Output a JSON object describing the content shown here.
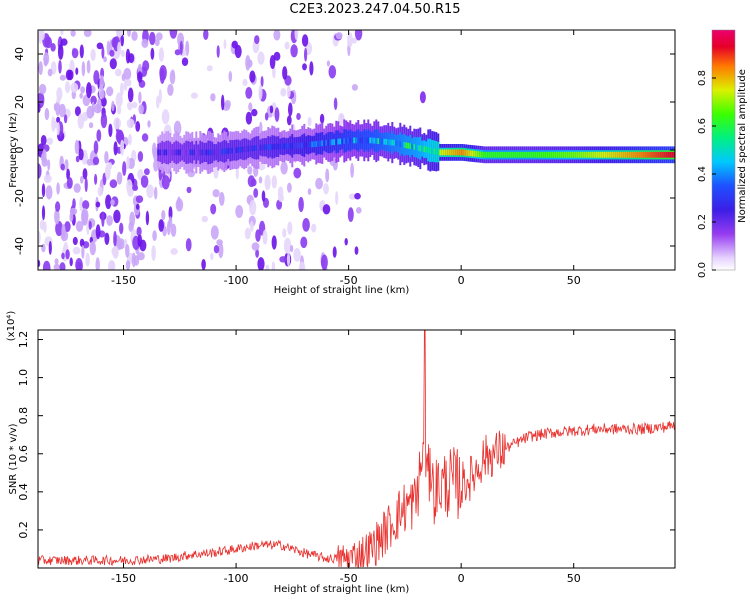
{
  "page": {
    "title": "C2E3.2023.247.04.50.R15"
  },
  "chart_data": [
    {
      "type": "heatmap",
      "title": "C2E3.2023.247.04.50.R15",
      "xlabel": "Height of straight line (km)",
      "ylabel": "Frequency (Hz)",
      "xlim": [
        -188,
        95
      ],
      "ylim": [
        -50,
        50
      ],
      "x_ticks": [
        -150,
        -100,
        -50,
        0,
        50
      ],
      "y_ticks": [
        -40,
        -20,
        0,
        20,
        40
      ],
      "colorbar": {
        "label": "Normalized spectral amplitude",
        "ticks": [
          0.0,
          0.2,
          0.4,
          0.6,
          0.8
        ],
        "range": [
          0,
          1
        ]
      },
      "signal_band": {
        "description_points_x": [
          -130,
          -110,
          -90,
          -70,
          -50,
          -40,
          -30,
          -20,
          -10,
          0,
          10,
          30,
          50,
          70,
          95
        ],
        "center_frequency": [
          -1,
          -1,
          1,
          2,
          4,
          4,
          3,
          1,
          -1,
          -1,
          -2,
          -2,
          -2,
          -2,
          -2
        ],
        "amplitude": [
          0.25,
          0.3,
          0.3,
          0.35,
          0.45,
          0.5,
          0.55,
          0.6,
          0.7,
          0.8,
          0.6,
          0.6,
          0.65,
          0.75,
          0.9
        ]
      },
      "noise_region_x": [
        -188,
        -45
      ]
    },
    {
      "type": "line",
      "xlabel": "Height of straight line (km)",
      "ylabel": "SNR (10 * v/v)",
      "y_scale_label": "(x10⁴)",
      "xlim": [
        -188,
        95
      ],
      "ylim": [
        0,
        1.25
      ],
      "x_ticks": [
        -150,
        -100,
        -50,
        0,
        50
      ],
      "y_ticks": [
        0.2,
        0.4,
        0.6,
        0.8,
        1.0,
        1.2
      ],
      "color": "#e8302d",
      "series": [
        {
          "x": [
            -188,
            -170,
            -150,
            -130,
            -120,
            -110,
            -100,
            -90,
            -80,
            -70,
            -60,
            -50,
            -45,
            -40,
            -35,
            -30,
            -25,
            -20,
            -17,
            -15,
            -12,
            -10,
            -5,
            0,
            5,
            10,
            15,
            20,
            25,
            30,
            40,
            50,
            60,
            70,
            80,
            90,
            95
          ],
          "values": [
            0.04,
            0.04,
            0.04,
            0.05,
            0.07,
            0.08,
            0.1,
            0.12,
            0.12,
            0.08,
            0.05,
            0.05,
            0.07,
            0.1,
            0.17,
            0.25,
            0.32,
            0.35,
            0.6,
            0.5,
            0.4,
            0.43,
            0.45,
            0.44,
            0.48,
            0.58,
            0.6,
            0.63,
            0.66,
            0.69,
            0.71,
            0.72,
            0.73,
            0.73,
            0.73,
            0.74,
            0.75
          ]
        }
      ]
    }
  ]
}
